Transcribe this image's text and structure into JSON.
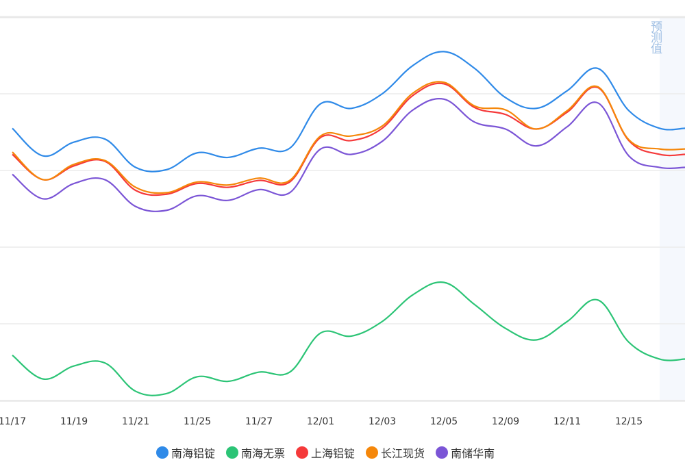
{
  "chart_data": {
    "type": "line",
    "title": "",
    "xlabel": "",
    "ylabel": "",
    "x": [
      0,
      1,
      2,
      3,
      4,
      5,
      6,
      7,
      8,
      9,
      10,
      11,
      12,
      13,
      14,
      15,
      16,
      17,
      18,
      19,
      20,
      21,
      22
    ],
    "x_ticks": [
      {
        "x": 0,
        "label": "11/17"
      },
      {
        "x": 2,
        "label": "11/19"
      },
      {
        "x": 4,
        "label": "11/21"
      },
      {
        "x": 6,
        "label": "11/25"
      },
      {
        "x": 8,
        "label": "11/27"
      },
      {
        "x": 10,
        "label": "12/01"
      },
      {
        "x": 12,
        "label": "12/03"
      },
      {
        "x": 14,
        "label": "12/05"
      },
      {
        "x": 16,
        "label": "12/09"
      },
      {
        "x": 18,
        "label": "12/11"
      },
      {
        "x": 20,
        "label": "12/15"
      }
    ],
    "ylim": [
      0,
      50
    ],
    "grid": true,
    "y_tick_labels_visible": false,
    "forecast_from_x": 21,
    "forecast_label": "预测值",
    "legend_position": "bottom",
    "series": [
      {
        "name": "南海铝锭",
        "color": "#2f8ae8",
        "values": [
          35.5,
          31.9,
          33.7,
          34.1,
          30.4,
          30.1,
          32.3,
          31.7,
          32.9,
          32.9,
          38.7,
          38.1,
          40.0,
          43.7,
          45.5,
          43.3,
          39.5,
          38.1,
          40.4,
          43.3,
          37.8,
          35.5,
          35.5
        ]
      },
      {
        "name": "南海无票",
        "color": "#2cc476",
        "values": [
          5.9,
          2.8,
          4.5,
          4.9,
          1.2,
          0.9,
          3.1,
          2.5,
          3.7,
          3.7,
          8.8,
          8.4,
          10.3,
          13.8,
          15.4,
          12.5,
          9.4,
          7.9,
          10.3,
          13.1,
          7.6,
          5.4,
          5.4
        ]
      },
      {
        "name": "上海铝锭",
        "color": "#f5393a",
        "values": [
          32.1,
          28.8,
          30.6,
          31.2,
          27.4,
          26.9,
          28.3,
          27.8,
          28.7,
          28.5,
          34.3,
          33.9,
          35.5,
          39.8,
          41.3,
          38.2,
          37.3,
          35.4,
          37.6,
          40.8,
          33.9,
          32.1,
          32.1
        ]
      },
      {
        "name": "长江现货",
        "color": "#f5870a",
        "values": [
          32.4,
          28.8,
          30.8,
          31.3,
          27.8,
          27.1,
          28.5,
          28.1,
          29.0,
          28.7,
          34.5,
          34.5,
          35.8,
          40.1,
          41.5,
          38.4,
          37.9,
          35.4,
          37.8,
          40.9,
          34.0,
          32.8,
          32.8
        ]
      },
      {
        "name": "南储华南",
        "color": "#7b55d6",
        "values": [
          29.5,
          26.3,
          28.3,
          28.8,
          25.3,
          24.8,
          26.7,
          26.1,
          27.5,
          27.1,
          32.8,
          32.1,
          33.8,
          37.9,
          39.3,
          36.3,
          35.4,
          33.2,
          35.7,
          38.8,
          31.9,
          30.4,
          30.4
        ]
      }
    ]
  }
}
